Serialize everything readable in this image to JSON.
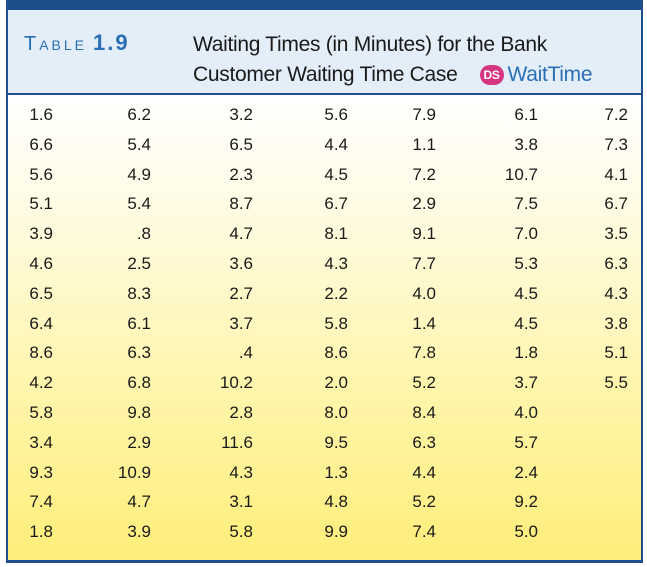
{
  "header": {
    "table_word": "Table",
    "table_number": "1.9",
    "title_line1": "Waiting Times (in Minutes) for the Bank",
    "title_line2": "Customer Waiting Time Case",
    "ds_badge": "DS",
    "file_name": "WaitTime"
  },
  "colors": {
    "accent": "#1f4e8c",
    "label_blue": "#2a6fb6",
    "badge_pink": "#d6357f",
    "header_bg": "#e3eef8",
    "body_gradient_end": "#ffee7a"
  },
  "columns": [
    [
      "1.6",
      "6.6",
      "5.6",
      "5.1",
      "3.9",
      "4.6",
      "6.5",
      "6.4",
      "8.6",
      "4.2",
      "5.8",
      "3.4",
      "9.3",
      "7.4",
      "1.8"
    ],
    [
      "6.2",
      "5.4",
      "4.9",
      "5.4",
      ".8",
      "2.5",
      "8.3",
      "6.1",
      "6.3",
      "6.8",
      "9.8",
      "2.9",
      "10.9",
      "4.7",
      "3.9"
    ],
    [
      "3.2",
      "6.5",
      "2.3",
      "8.7",
      "4.7",
      "3.6",
      "2.7",
      "3.7",
      ".4",
      "10.2",
      "2.8",
      "11.6",
      "4.3",
      "3.1",
      "5.8"
    ],
    [
      "5.6",
      "4.4",
      "4.5",
      "6.7",
      "8.1",
      "4.3",
      "2.2",
      "5.8",
      "8.6",
      "2.0",
      "8.0",
      "9.5",
      "1.3",
      "4.8",
      "9.9"
    ],
    [
      "7.9",
      "1.1",
      "7.2",
      "2.9",
      "9.1",
      "7.7",
      "4.0",
      "1.4",
      "7.8",
      "5.2",
      "8.4",
      "6.3",
      "4.4",
      "5.2",
      "7.4"
    ],
    [
      "6.1",
      "3.8",
      "10.7",
      "7.5",
      "7.0",
      "5.3",
      "4.5",
      "4.5",
      "1.8",
      "3.7",
      "4.0",
      "5.7",
      "2.4",
      "9.2",
      "5.0"
    ],
    [
      "7.2",
      "7.3",
      "4.1",
      "6.7",
      "3.5",
      "6.3",
      "4.3",
      "3.8",
      "5.1",
      "5.5"
    ]
  ]
}
